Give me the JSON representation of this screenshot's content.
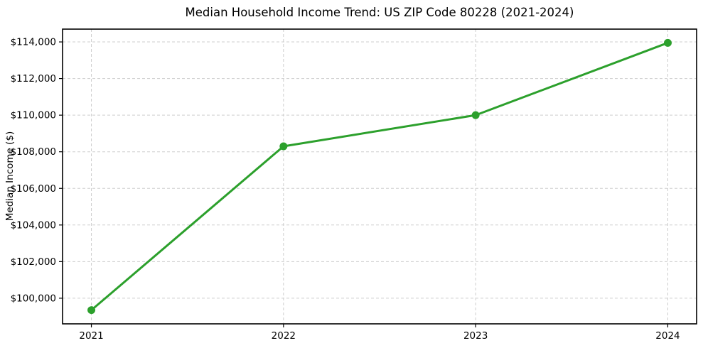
{
  "figure": {
    "background": "#ffffff"
  },
  "chart_data": {
    "type": "line",
    "title": "Median Household Income Trend: US ZIP Code 80228 (2021-2024)",
    "xlabel": "",
    "ylabel": "Median Income ($)",
    "x": [
      2021,
      2022,
      2023,
      2024
    ],
    "series": [
      {
        "name": "Median Household Income",
        "values": [
          99350,
          108300,
          110000,
          113950
        ]
      }
    ],
    "xticks": [
      2021,
      2022,
      2023,
      2024
    ],
    "xtick_labels": [
      "2021",
      "2022",
      "2023",
      "2024"
    ],
    "yticks": [
      100000,
      102000,
      104000,
      106000,
      108000,
      110000,
      112000,
      114000
    ],
    "ytick_labels": [
      "$100,000",
      "$102,000",
      "$104,000",
      "$106,000",
      "$108,000",
      "$110,000",
      "$112,000",
      "$114,000"
    ],
    "xlim": [
      2020.85,
      2024.15
    ],
    "ylim": [
      98600,
      114700
    ],
    "grid": true,
    "grid_style": "dashed",
    "legend": false,
    "colors": {
      "line": "#2ca02c",
      "marker": "#2ca02c",
      "grid": "#cdcdcd",
      "spine": "#000000",
      "text": "#000000"
    }
  }
}
